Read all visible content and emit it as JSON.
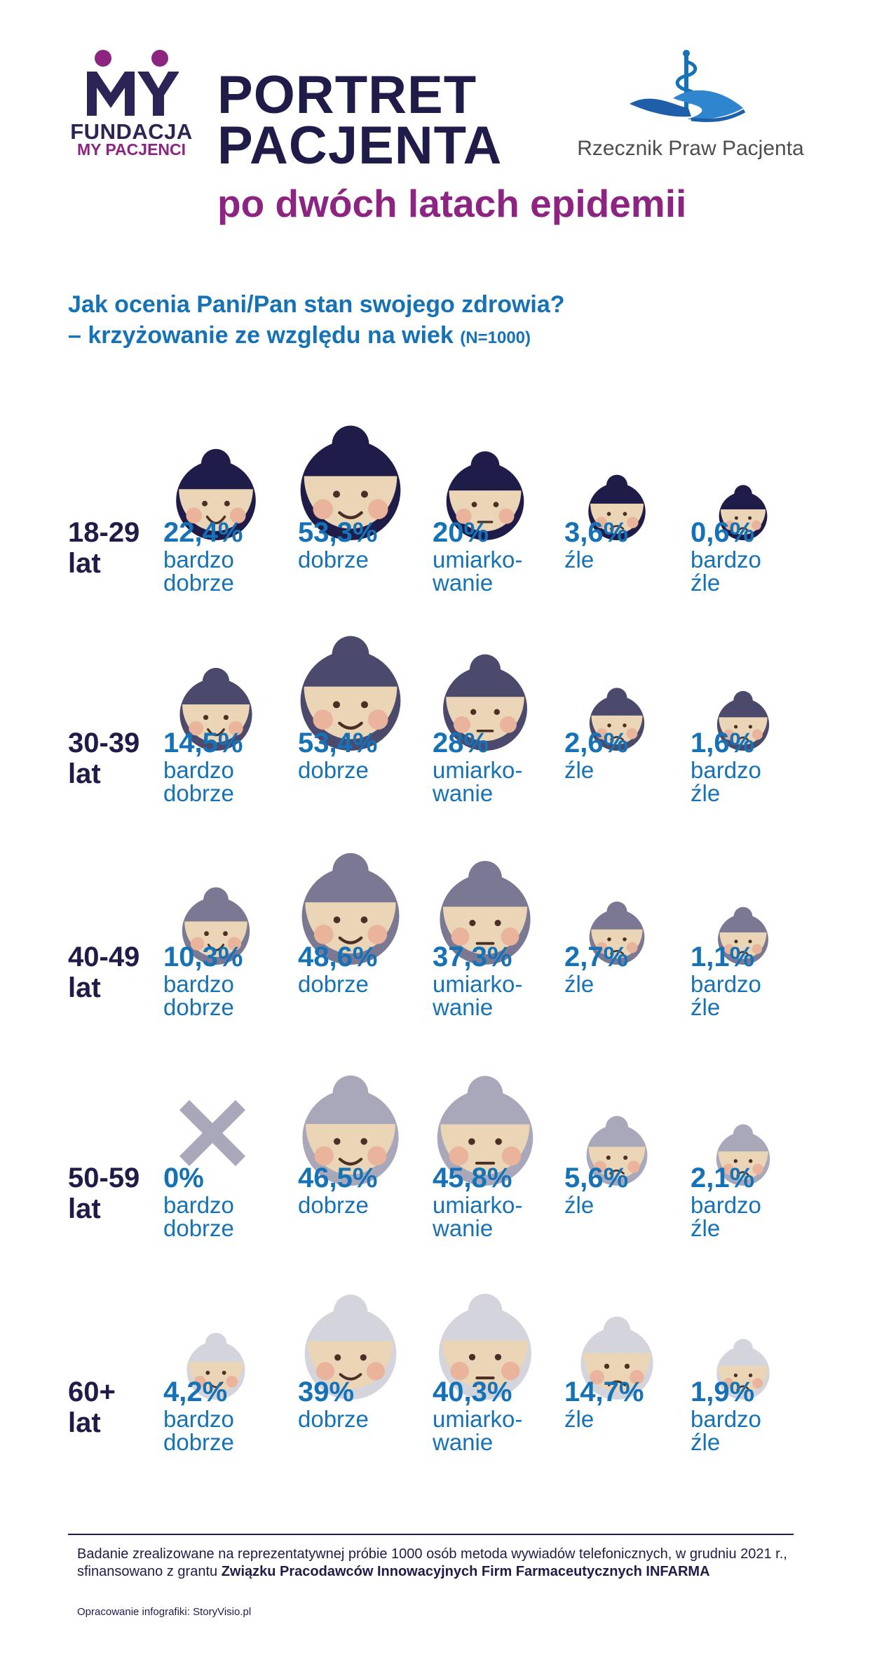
{
  "header": {
    "logo_my": {
      "mark": "MY",
      "line1": "FUNDACJA",
      "line2": "MY PACJENCI",
      "colors": {
        "dark": "#2d2456",
        "purple": "#8e2481"
      }
    },
    "title": "PORTRET\nPACJENTA",
    "subtitle": "po dwóch latach epidemii",
    "logo_rpp": {
      "text": "Rzecznik Praw Pacjenta",
      "icon": "caring-hands-caduceus-icon"
    }
  },
  "question": {
    "line1": "Jak ocenia Pani/Pan stan swojego zdrowia?",
    "line2": "– krzyżowanie ze względu na wiek",
    "n": "(N=1000)"
  },
  "colors": {
    "text_blue": "#1572b6",
    "dark": "#1f1c4a",
    "skin": "#ead5b7",
    "cheek": "#eab49c",
    "hair_by_group": [
      "#1f1c4a",
      "#4b4a6d",
      "#7a7892",
      "#a9a8ba",
      "#d4d4dd"
    ]
  },
  "chart_data": {
    "type": "table",
    "title": "Jak ocenia Pani/Pan stan swojego zdrowia? – krzyżowanie ze względu na wiek (N=1000)",
    "categories": [
      "bardzo dobrze",
      "dobrze",
      "umiarkowanie",
      "źle",
      "bardzo źle"
    ],
    "category_labels": [
      "bardzo\ndobrze",
      "dobrze",
      "umiarko-\nwanie",
      "źle",
      "bardzo\nźle"
    ],
    "face_expressions": [
      "big-smile",
      "smile",
      "neutral",
      "frown",
      "big-frown"
    ],
    "unit": "%",
    "series": [
      {
        "name": "18-29 lat",
        "label": "18-29\nlat",
        "values": [
          22.4,
          53.3,
          20,
          3.6,
          0.6
        ],
        "display": [
          "22,4%",
          "53,3%",
          "20%",
          "3,6%",
          "0,6%"
        ]
      },
      {
        "name": "30-39 lat",
        "label": "30-39\nlat",
        "values": [
          14.5,
          53.4,
          28,
          2.6,
          1.6
        ],
        "display": [
          "14,5%",
          "53,4%",
          "28%",
          "2,6%",
          "1,6%"
        ]
      },
      {
        "name": "40-49 lat",
        "label": "40-49\nlat",
        "values": [
          10.3,
          48.6,
          37.3,
          2.7,
          1.1
        ],
        "display": [
          "10,3%",
          "48,6%",
          "37,3%",
          "2,7%",
          "1,1%"
        ]
      },
      {
        "name": "50-59 lat",
        "label": "50-59\nlat",
        "values": [
          0,
          46.5,
          45.8,
          5.6,
          2.1
        ],
        "display": [
          "0%",
          "46,5%",
          "45,8%",
          "5,6%",
          "2,1%"
        ]
      },
      {
        "name": "60+ lat",
        "label": "60+\nlat",
        "values": [
          4.2,
          39,
          40.3,
          14.7,
          1.9
        ],
        "display": [
          "4,2%",
          "39%",
          "40,3%",
          "14,7%",
          "1,9%"
        ]
      }
    ]
  },
  "footer": {
    "text_prefix": "Badanie zrealizowane na reprezentatywnej próbie 1000 osób metoda wywiadów telefonicznych, w grudniu 2021 r., sfinansowano z grantu ",
    "sponsor": "Związku Pracodawców Innowacyjnych Firm Farmaceutycznych INFARMA",
    "credit": "Opracowanie infografiki: StoryVisio.pl"
  }
}
